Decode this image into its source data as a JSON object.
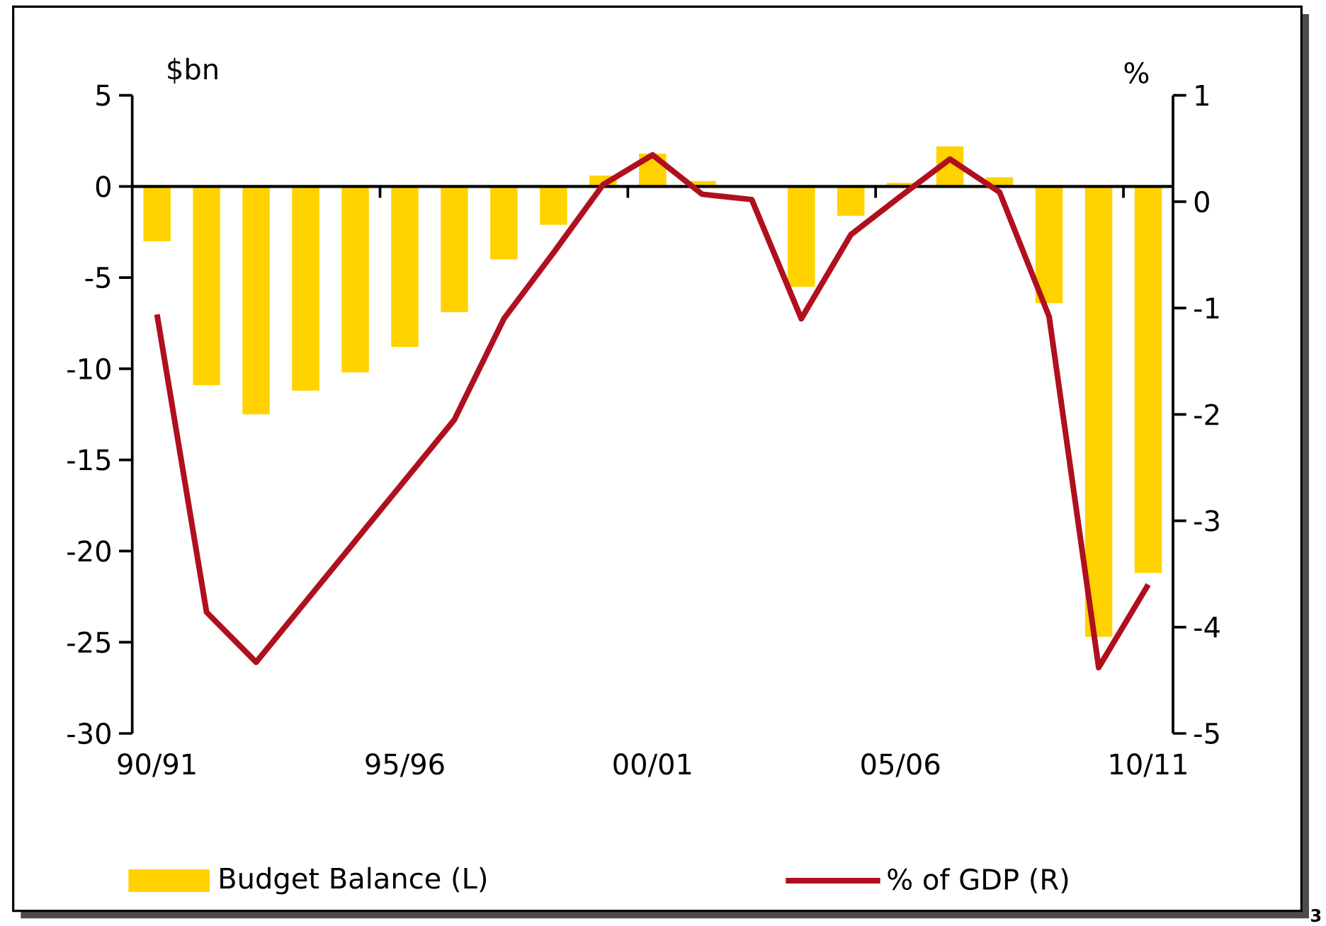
{
  "chart_data": {
    "type": "bar",
    "ylabel": "$bn",
    "y2label": "%",
    "categories": [
      "90/91",
      null,
      null,
      null,
      null,
      "95/96",
      null,
      null,
      null,
      null,
      "00/01",
      null,
      null,
      null,
      null,
      "05/06",
      null,
      null,
      null,
      null,
      "10/11"
    ],
    "series": [
      {
        "name": "Budget Balance (L)",
        "color": "#ffd200",
        "values": [
          -3.0,
          -10.9,
          -12.5,
          -11.2,
          -10.2,
          -8.8,
          -6.9,
          -4.0,
          -2.1,
          0.6,
          1.8,
          0.3,
          0,
          -5.5,
          -1.6,
          0.2,
          2.2,
          0.5,
          -6.4,
          -24.7,
          -21.2
        ]
      },
      {
        "name": "% of GDP (R)",
        "type": "line",
        "axis": "y2",
        "color": "#b0101e",
        "values": [
          -1.06,
          -3.86,
          -4.33,
          -3.76,
          -3.19,
          -2.62,
          -2.05,
          -1.1,
          -0.48,
          0.16,
          0.44,
          0.07,
          0.02,
          -1.1,
          -0.31,
          0.05,
          0.4,
          0.09,
          -1.08,
          -4.38,
          -3.6
        ]
      }
    ],
    "ylim": [
      -30,
      5
    ],
    "yticks": [
      -30,
      -25,
      -20,
      -15,
      -10,
      -5,
      0,
      5
    ],
    "y2lim": [
      -5,
      1
    ],
    "y2ticks": [
      -5,
      -4,
      -3,
      -2,
      -1,
      0,
      1
    ],
    "legend": "bottom",
    "annotations": [
      "3"
    ]
  }
}
